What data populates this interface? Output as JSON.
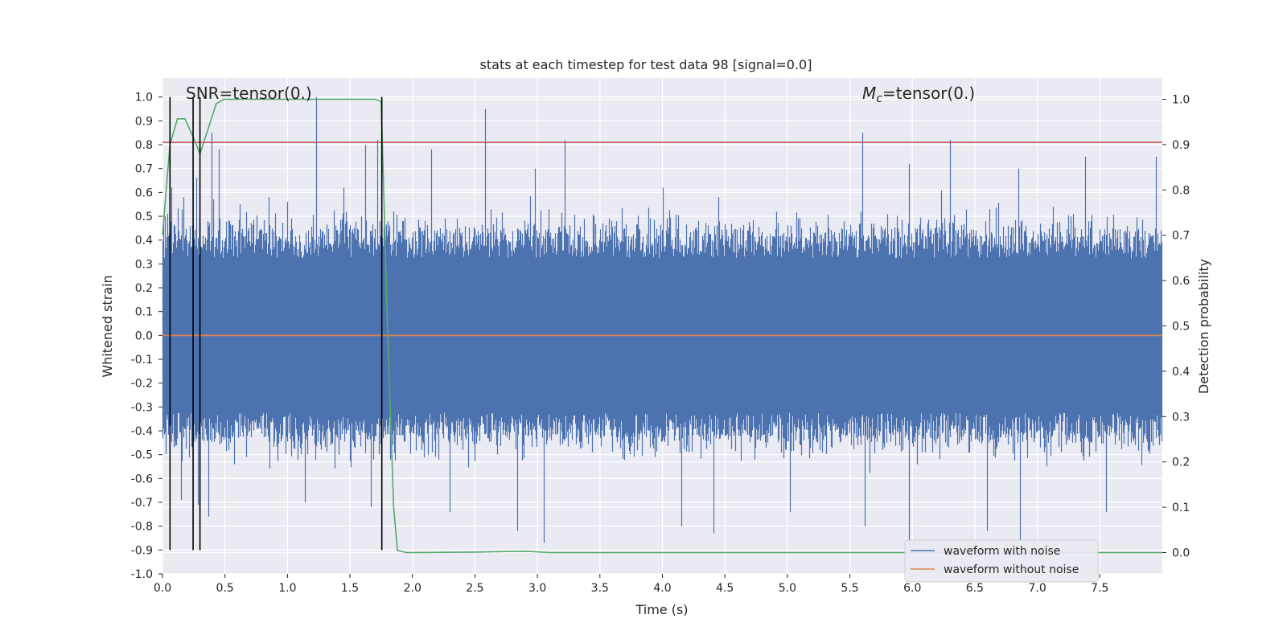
{
  "chart_data": {
    "type": "line",
    "title": "stats at each timestep for test data 98 [signal=0.0]",
    "xlabel": "Time (s)",
    "ylabel_left": "Whitened strain",
    "ylabel_right": "Detection probability",
    "xlim": [
      0.0,
      8.0
    ],
    "ylim_left": [
      -1.0,
      1.08
    ],
    "ylim_right": [
      -0.047,
      1.047
    ],
    "x_ticks": [
      "0.0",
      "0.5",
      "1.0",
      "1.5",
      "2.0",
      "2.5",
      "3.0",
      "3.5",
      "4.0",
      "4.5",
      "5.0",
      "5.5",
      "6.0",
      "6.5",
      "7.0",
      "7.5"
    ],
    "y_left_ticks": [
      "-1.0",
      "-0.9",
      "-0.8",
      "-0.7",
      "-0.6",
      "-0.5",
      "-0.4",
      "-0.3",
      "-0.2",
      "-0.1",
      "0.0",
      "0.1",
      "0.2",
      "0.3",
      "0.4",
      "0.5",
      "0.6",
      "0.7",
      "0.8",
      "0.9",
      "1.0"
    ],
    "y_right_ticks": [
      "0.0",
      "0.1",
      "0.2",
      "0.3",
      "0.4",
      "0.5",
      "0.6",
      "0.7",
      "0.8",
      "0.9",
      "1.0"
    ],
    "grid": true,
    "legend_position": "lower right",
    "annotations": {
      "snr": "SNR=tensor(0.)",
      "mc_symbol": "M",
      "mc_subscript": "c",
      "mc_value": "=tensor(0.)"
    },
    "series": [
      {
        "name": "waveform with noise",
        "axis": "left",
        "color": "#4c72b0",
        "description_stats": {
          "typical_min": -0.45,
          "typical_max": 0.45,
          "peak_max": 1.0,
          "peak_min": -0.88
        },
        "peaks": [
          {
            "x": 0.07,
            "y": 0.62
          },
          {
            "x": 0.17,
            "y": 0.58
          },
          {
            "x": 0.27,
            "y": 0.66
          },
          {
            "x": 0.39,
            "y": 0.85
          },
          {
            "x": 0.45,
            "y": 0.78
          },
          {
            "x": 0.62,
            "y": 0.55
          },
          {
            "x": 0.85,
            "y": 0.58
          },
          {
            "x": 1.0,
            "y": 0.56
          },
          {
            "x": 1.23,
            "y": 1.0
          },
          {
            "x": 1.45,
            "y": 0.62
          },
          {
            "x": 1.62,
            "y": 0.8
          },
          {
            "x": 1.72,
            "y": 0.82
          },
          {
            "x": 2.15,
            "y": 0.78
          },
          {
            "x": 2.58,
            "y": 0.95
          },
          {
            "x": 2.98,
            "y": 0.7
          },
          {
            "x": 3.22,
            "y": 0.82
          },
          {
            "x": 4.0,
            "y": 0.62
          },
          {
            "x": 4.45,
            "y": 0.58
          },
          {
            "x": 5.6,
            "y": 0.85
          },
          {
            "x": 5.97,
            "y": 0.72
          },
          {
            "x": 6.3,
            "y": 0.82
          },
          {
            "x": 6.85,
            "y": 0.7
          },
          {
            "x": 7.38,
            "y": 0.75
          },
          {
            "x": 7.95,
            "y": 0.75
          }
        ],
        "troughs": [
          {
            "x": 0.15,
            "y": -0.69
          },
          {
            "x": 0.28,
            "y": -0.71
          },
          {
            "x": 0.37,
            "y": -0.76
          },
          {
            "x": 1.14,
            "y": -0.7
          },
          {
            "x": 1.67,
            "y": -0.72
          },
          {
            "x": 2.3,
            "y": -0.74
          },
          {
            "x": 2.84,
            "y": -0.82
          },
          {
            "x": 3.05,
            "y": -0.87
          },
          {
            "x": 4.15,
            "y": -0.8
          },
          {
            "x": 4.41,
            "y": -0.83
          },
          {
            "x": 5.02,
            "y": -0.74
          },
          {
            "x": 5.62,
            "y": -0.8
          },
          {
            "x": 5.97,
            "y": -0.88
          },
          {
            "x": 6.6,
            "y": -0.82
          },
          {
            "x": 6.86,
            "y": -0.86
          },
          {
            "x": 7.55,
            "y": -0.74
          }
        ]
      },
      {
        "name": "waveform without noise",
        "axis": "left",
        "color": "#dd8452",
        "x": [
          0.0,
          8.0
        ],
        "y": [
          0.0,
          0.0
        ]
      },
      {
        "name": "",
        "axis": "right",
        "color": "#55a868",
        "x": [
          0.0,
          0.06,
          0.12,
          0.18,
          0.24,
          0.3,
          0.36,
          0.43,
          0.49,
          0.6,
          0.8,
          1.0,
          1.2,
          1.4,
          1.6,
          1.7,
          1.75,
          1.8,
          1.85,
          1.88,
          1.95,
          2.0,
          2.5,
          2.9,
          3.1,
          4.0,
          5.0,
          6.0,
          7.0,
          8.0
        ],
        "y": [
          0.7,
          0.9,
          0.957,
          0.957,
          0.92,
          0.88,
          0.93,
          0.99,
          1.0,
          1.0,
          1.0,
          1.0,
          1.0,
          1.0,
          1.0,
          1.0,
          0.995,
          0.5,
          0.1,
          0.005,
          0.0,
          0.0,
          0.001,
          0.003,
          0.0,
          0.0,
          0.0,
          0.0,
          0.0,
          0.0
        ]
      }
    ],
    "threshold_line": {
      "axis": "left",
      "y": 0.81,
      "color": "#c44e52"
    },
    "vertical_markers": {
      "x": [
        0.06,
        0.245,
        0.3,
        1.755
      ],
      "y_from": -0.9,
      "y_to": 1.0,
      "color": "#000000"
    },
    "colors": {
      "plot_bg": "#eaeaf2",
      "grid": "#ffffff"
    }
  }
}
